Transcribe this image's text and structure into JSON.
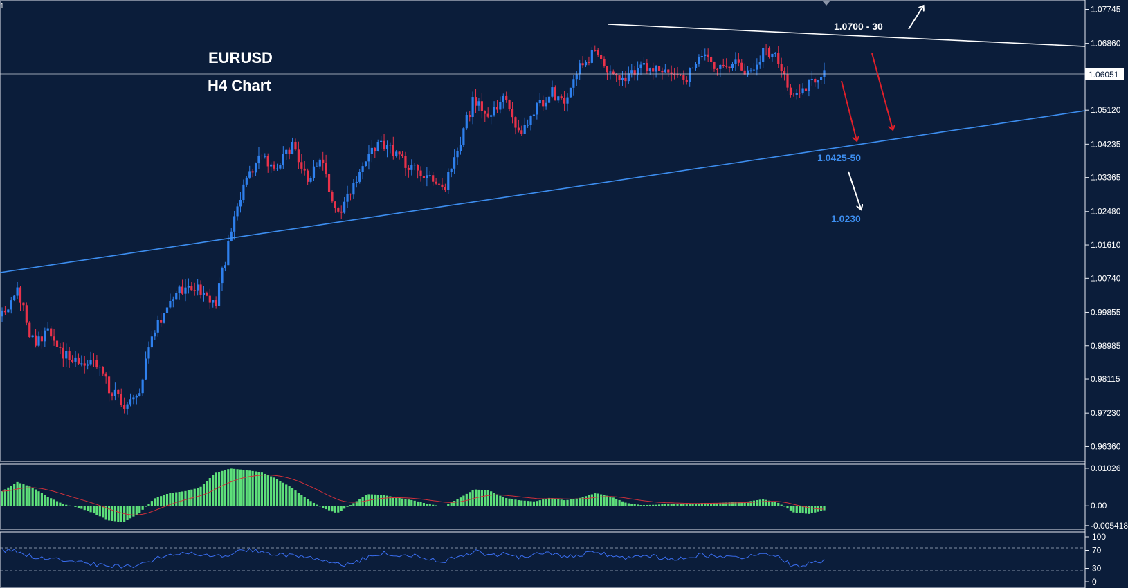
{
  "chart_data": [
    {
      "type": "candlestick",
      "symbol": "EURUSD",
      "timeframe": "H4 Chart",
      "ylim": [
        0.9599,
        1.0797
      ],
      "y_ticks": [
        "1.07745",
        "1.06860",
        "1.05120",
        "1.04235",
        "1.03365",
        "1.02480",
        "1.01610",
        "1.00740",
        "0.99855",
        "0.98985",
        "0.98115",
        "0.97230",
        "0.96360"
      ],
      "current_price": "1.06051",
      "anchor_closes": [
        0.9975,
        1.0048,
        0.991,
        0.993,
        0.988,
        0.985,
        0.987,
        0.979,
        0.974,
        0.9785,
        0.9935,
        1.001,
        1.0055,
        1.004,
        1.0,
        1.019,
        1.033,
        1.0405,
        1.035,
        1.042,
        1.033,
        1.0375,
        1.024,
        1.03,
        1.04,
        1.043,
        1.039,
        1.036,
        1.034,
        1.03,
        1.042,
        1.0545,
        1.048,
        1.056,
        1.045,
        1.051,
        1.056,
        1.053,
        1.063,
        1.066,
        1.06,
        1.059,
        1.064,
        1.061,
        1.061,
        1.06,
        1.065,
        1.062,
        1.064,
        1.06,
        1.0665,
        1.064,
        1.054,
        1.0585,
        1.061
      ],
      "annotations": {
        "resistance_label": "1.0700 - 30",
        "support_label": "1.0425-50",
        "target_label": "1.0230",
        "colors": {
          "background": "#0b1d3a",
          "bull": "#2f80ed",
          "bear": "#e8324a",
          "resistance_line": "#ffffff",
          "support_line": "#3d8ef0",
          "arrow_down": "#e0202a",
          "arrow_white": "#ffffff"
        }
      }
    },
    {
      "type": "histogram",
      "indicator": "MACD",
      "y_ticks": [
        "0.01026",
        "0.00",
        "-0.005418"
      ],
      "ylim": [
        -0.0062,
        0.0112
      ],
      "anchor_values": [
        0.004,
        0.0065,
        0.005,
        0.0025,
        0.0005,
        -0.0005,
        -0.002,
        -0.004,
        -0.0045,
        -0.002,
        0.002,
        0.0035,
        0.004,
        0.005,
        0.009,
        0.0102,
        0.0098,
        0.0092,
        0.0075,
        0.005,
        0.002,
        -0.0005,
        -0.002,
        0.0005,
        0.0032,
        0.003,
        0.0022,
        0.0015,
        0.0005,
        -0.0002,
        0.002,
        0.0045,
        0.0042,
        0.0022,
        0.0015,
        0.0012,
        0.0022,
        0.0015,
        0.0022,
        0.0035,
        0.0025,
        0.0008,
        0.0002,
        0.0003,
        0.0006,
        0.0004,
        0.0008,
        0.0008,
        0.001,
        0.0012,
        0.0018,
        0.0008,
        -0.0018,
        -0.0022,
        -0.0012
      ],
      "colors": {
        "bar": "#5ee07a",
        "signal": "#d0303a"
      }
    },
    {
      "type": "line",
      "indicator": "RSI",
      "y_ticks": [
        "100",
        "70",
        "30",
        "0"
      ],
      "ylim": [
        0,
        100
      ],
      "levels": [
        70,
        30
      ],
      "anchor_values": [
        70,
        68,
        55,
        52,
        48,
        42,
        40,
        35,
        32,
        38,
        50,
        60,
        65,
        62,
        55,
        60,
        72,
        68,
        60,
        58,
        55,
        52,
        38,
        40,
        55,
        65,
        60,
        58,
        52,
        45,
        55,
        68,
        58,
        62,
        55,
        60,
        62,
        55,
        60,
        66,
        58,
        52,
        60,
        55,
        52,
        54,
        60,
        55,
        57,
        55,
        65,
        58,
        32,
        40,
        48
      ],
      "colors": {
        "line": "#3a6ef0",
        "levels": "#aab4c8"
      }
    }
  ]
}
